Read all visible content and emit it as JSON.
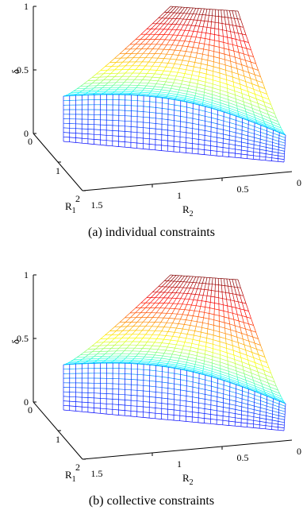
{
  "chart_data": [
    {
      "type": "surface",
      "caption": "(a) individual constraints",
      "zlabel": "δ",
      "xlabel_main": "R",
      "xlabel_sub": "1",
      "ylabel_main": "R",
      "ylabel_sub": "2",
      "x_ticks": [
        "0",
        "1",
        "2"
      ],
      "y_ticks": [
        "1.5",
        "1",
        "0.5",
        "0"
      ],
      "z_ticks": [
        "0",
        "0.5",
        "1"
      ],
      "r1_range": [
        0,
        2
      ],
      "r2_range": [
        0,
        1.5
      ],
      "z_range": [
        0,
        1
      ],
      "surface_top_range": [
        0.3,
        1.0
      ],
      "shape": "two linear rate constraints R1 ≤ C1 and R2 ≤ C2 forming a curved slab",
      "colormap": "jet"
    },
    {
      "type": "surface",
      "caption": "(b) collective constraints",
      "zlabel": "δ",
      "xlabel_main": "R",
      "xlabel_sub": "1",
      "ylabel_main": "R",
      "ylabel_sub": "2",
      "x_ticks": [
        "0",
        "1",
        "2"
      ],
      "y_ticks": [
        "1.5",
        "1",
        "0.5",
        "0"
      ],
      "z_ticks": [
        "0",
        "0.5",
        "1"
      ],
      "r1_range": [
        0,
        2
      ],
      "r2_range": [
        0,
        1.5
      ],
      "z_range": [
        0,
        1
      ],
      "surface_top_range": [
        0.3,
        1.0
      ],
      "shape": "rate region with an additional sum-rate constraint, creating a chamfered front corner",
      "colormap": "jet"
    }
  ]
}
